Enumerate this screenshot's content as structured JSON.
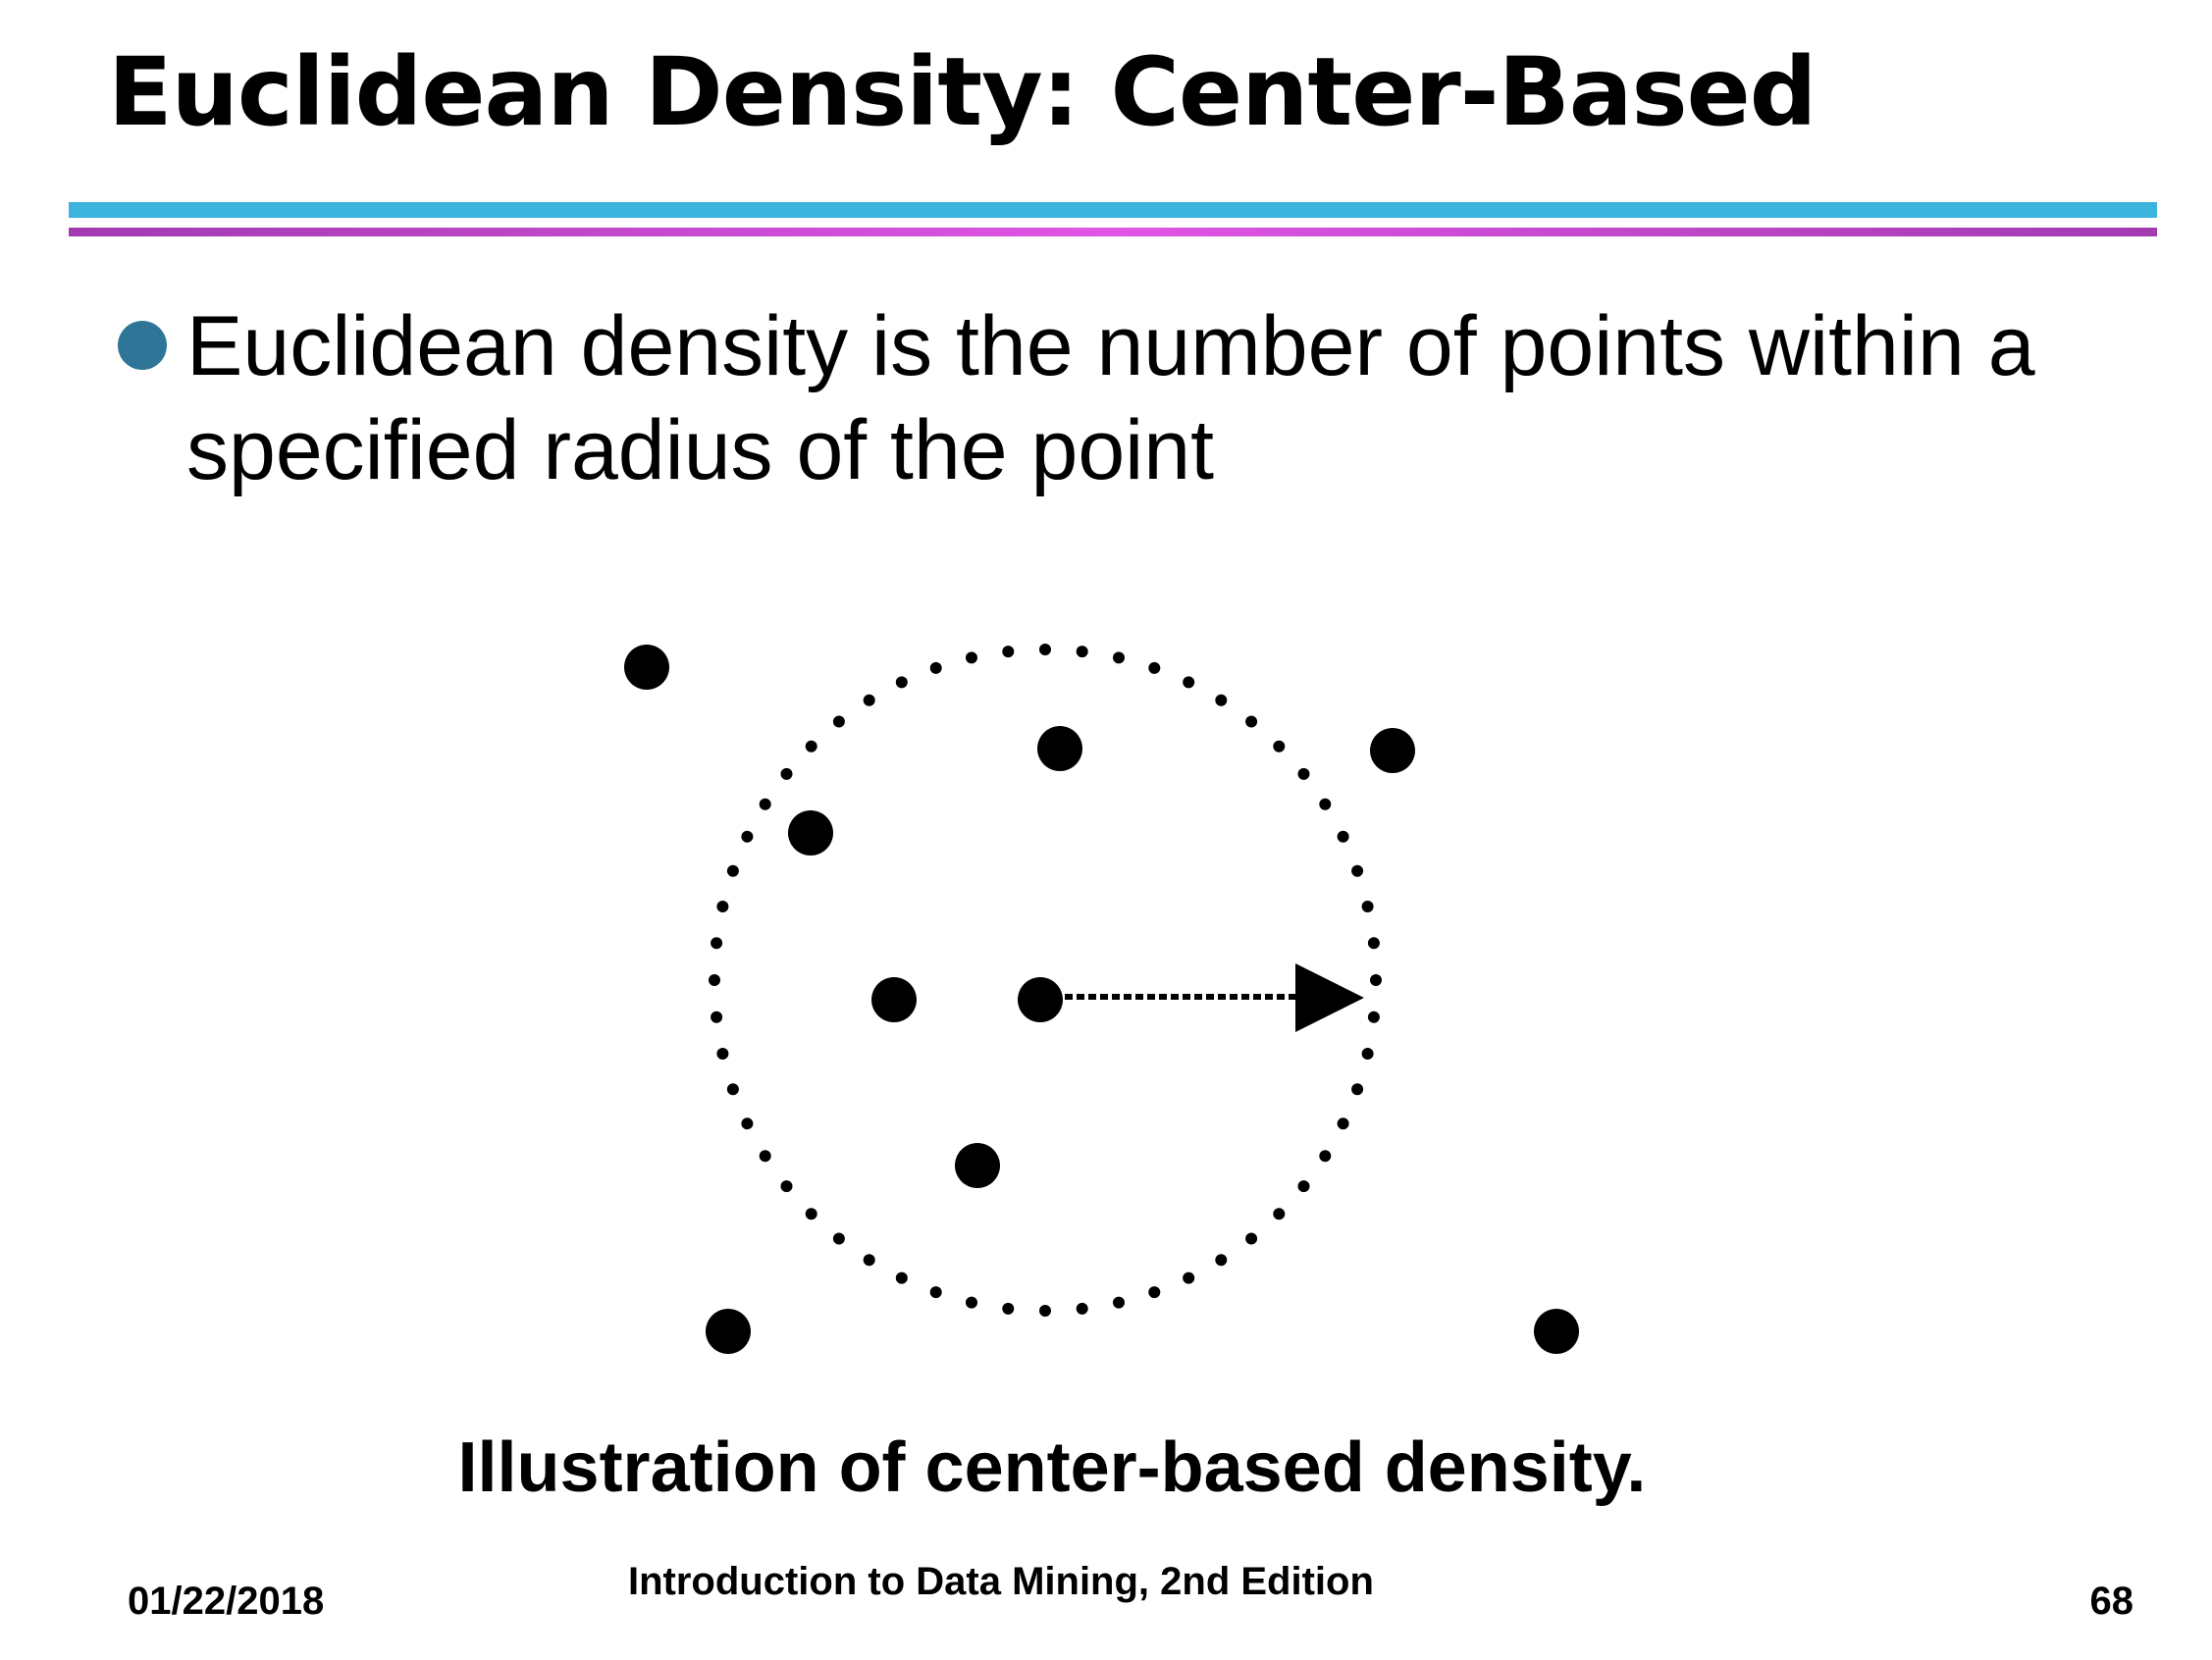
{
  "slide": {
    "title": "Euclidean Density: Center-Based",
    "bullet": "Euclidean density is the number of points within a specified radius of the point",
    "caption": "Illustration of center-based density."
  },
  "footer": {
    "date": "01/22/2018",
    "center": "Introduction to Data Mining, 2nd Edition",
    "page": "68"
  },
  "colors": {
    "bullet": "#2f7598",
    "rule_top": "#3bb3dd",
    "rule_bottom": "#c74cd2"
  }
}
